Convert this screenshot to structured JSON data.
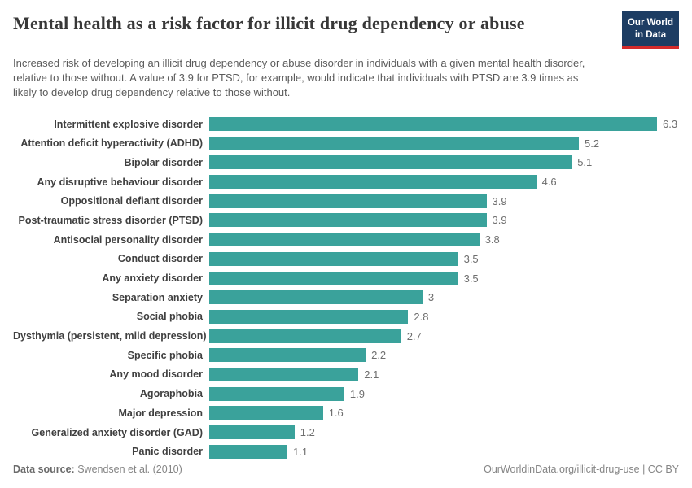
{
  "header": {
    "title": "Mental health as a risk factor for illicit drug dependency or abuse",
    "subtitle": "Increased risk of developing an illicit drug dependency or abuse disorder in individuals with a given mental health disorder, relative to those without. A value of 3.9 for PTSD, for example, would indicate that individuals with PTSD are 3.9 times as likely to develop drug dependency relative to those without.",
    "logo": {
      "line1": "Our World",
      "line2": "in Data"
    }
  },
  "chart_data": {
    "type": "bar",
    "orientation": "horizontal",
    "title": "Mental health as a risk factor for illicit drug dependency or abuse",
    "categories": [
      "Intermittent explosive disorder",
      "Attention deficit hyperactivity (ADHD)",
      "Bipolar disorder",
      "Any disruptive behaviour disorder",
      "Oppositional defiant disorder",
      "Post-traumatic stress disorder (PTSD)",
      "Antisocial personality disorder",
      "Conduct disorder",
      "Any anxiety disorder",
      "Separation anxiety",
      "Social phobia",
      "Dysthymia (persistent, mild depression)",
      "Specific phobia",
      "Any mood disorder",
      "Agoraphobia",
      "Major depression",
      "Generalized anxiety disorder (GAD)",
      "Panic disorder"
    ],
    "values": [
      6.3,
      5.2,
      5.1,
      4.6,
      3.9,
      3.9,
      3.8,
      3.5,
      3.5,
      3,
      2.8,
      2.7,
      2.2,
      2.1,
      1.9,
      1.6,
      1.2,
      1.1
    ],
    "value_labels": [
      "6.3",
      "5.2",
      "5.1",
      "4.6",
      "3.9",
      "3.9",
      "3.8",
      "3.5",
      "3.5",
      "3",
      "2.8",
      "2.7",
      "2.2",
      "2.1",
      "1.9",
      "1.6",
      "1.2",
      "1.1"
    ],
    "xlabel": "",
    "ylabel": "",
    "xlim": [
      0,
      6.3
    ],
    "grid": false,
    "legend": "none",
    "bar_color": "#3aa29b"
  },
  "colors": {
    "bar": "#3aa29b",
    "logo_bg": "#1d3d63",
    "logo_underline": "#d42b2b",
    "axis_line": "#d4d4d4"
  },
  "footer": {
    "source_label": "Data source:",
    "source_value": " Swendsen et al. (2010)",
    "right_text": "OurWorldinData.org/illicit-drug-use | CC BY"
  }
}
